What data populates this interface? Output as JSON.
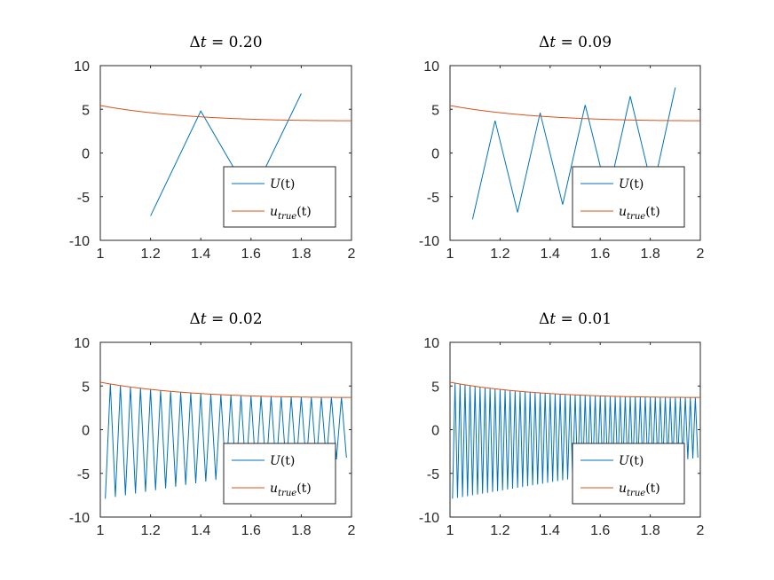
{
  "colors": {
    "U": "#0072BD",
    "utrue": "#D95319",
    "axis": "#262626"
  },
  "chart_data": [
    {
      "type": "line",
      "title": {
        "prefix": "Δ",
        "var": "t",
        "rest": " = 0.20"
      },
      "xlim": [
        1,
        2
      ],
      "ylim": [
        -10,
        10
      ],
      "xticks": [
        1,
        1.2,
        1.4,
        1.6,
        1.8,
        2
      ],
      "yticks": [
        -10,
        -5,
        0,
        5,
        10
      ],
      "xtick_labels": [
        "1",
        "1.2",
        "1.4",
        "1.6",
        "1.8",
        "2"
      ],
      "ytick_labels": [
        "-10",
        "-5",
        "0",
        "5",
        "10"
      ],
      "grid": false,
      "legend_position": "bottom-right",
      "series": [
        {
          "name": "U(t)",
          "label": {
            "main": "U",
            "sub": "",
            "arg": "(t)"
          },
          "color_key": "U",
          "x": [
            1.2,
            1.4,
            1.6,
            1.8
          ],
          "y": [
            -7.2,
            4.8,
            -5.1,
            6.8
          ]
        },
        {
          "name": "u_true(t)",
          "label": {
            "main": "u",
            "sub": "true",
            "arg": "(t)"
          },
          "color_key": "utrue",
          "function": "2*exp(t)/(t*t)"
        }
      ]
    },
    {
      "type": "line",
      "title": {
        "prefix": "Δ",
        "var": "t",
        "rest": " = 0.09"
      },
      "xlim": [
        1,
        2
      ],
      "ylim": [
        -10,
        10
      ],
      "xticks": [
        1,
        1.2,
        1.4,
        1.6,
        1.8,
        2
      ],
      "yticks": [
        -10,
        -5,
        0,
        5,
        10
      ],
      "xtick_labels": [
        "1",
        "1.2",
        "1.4",
        "1.6",
        "1.8",
        "2"
      ],
      "ytick_labels": [
        "-10",
        "-5",
        "0",
        "5",
        "10"
      ],
      "grid": false,
      "legend_position": "bottom-right",
      "series": [
        {
          "name": "U(t)",
          "label": {
            "main": "U",
            "sub": "",
            "arg": "(t)"
          },
          "color_key": "U",
          "x": [
            1.09,
            1.18,
            1.27,
            1.36,
            1.45,
            1.54,
            1.63,
            1.72,
            1.81,
            1.9
          ],
          "y": [
            -7.6,
            3.7,
            -6.8,
            4.6,
            -5.9,
            5.5,
            -5.0,
            6.5,
            -4.3,
            7.5
          ]
        },
        {
          "name": "u_true(t)",
          "label": {
            "main": "u",
            "sub": "true",
            "arg": "(t)"
          },
          "color_key": "utrue",
          "function": "2*exp(t)/(t*t)"
        }
      ]
    },
    {
      "type": "line",
      "title": {
        "prefix": "Δ",
        "var": "t",
        "rest": " = 0.02"
      },
      "xlim": [
        1,
        2
      ],
      "ylim": [
        -10,
        10
      ],
      "xticks": [
        1,
        1.2,
        1.4,
        1.6,
        1.8,
        2
      ],
      "yticks": [
        -10,
        -5,
        0,
        5,
        10
      ],
      "xtick_labels": [
        "1",
        "1.2",
        "1.4",
        "1.6",
        "1.8",
        "2"
      ],
      "ytick_labels": [
        "-10",
        "-5",
        "0",
        "5",
        "10"
      ],
      "grid": false,
      "legend_position": "bottom-right",
      "series": [
        {
          "name": "U(t)",
          "label": {
            "main": "U",
            "sub": "",
            "arg": "(t)"
          },
          "color_key": "U",
          "sawtooth": {
            "t0": 1.02,
            "dt": 0.02,
            "t_end": 1.98,
            "low_start": -7.9,
            "low_end": -3.2,
            "high": "utrue"
          }
        },
        {
          "name": "u_true(t)",
          "label": {
            "main": "u",
            "sub": "true",
            "arg": "(t)"
          },
          "color_key": "utrue",
          "function": "2*exp(t)/(t*t)"
        }
      ]
    },
    {
      "type": "line",
      "title": {
        "prefix": "Δ",
        "var": "t",
        "rest": " = 0.01"
      },
      "xlim": [
        1,
        2
      ],
      "ylim": [
        -10,
        10
      ],
      "xticks": [
        1,
        1.2,
        1.4,
        1.6,
        1.8,
        2
      ],
      "yticks": [
        -10,
        -5,
        0,
        5,
        10
      ],
      "xtick_labels": [
        "1",
        "1.2",
        "1.4",
        "1.6",
        "1.8",
        "2"
      ],
      "ytick_labels": [
        "-10",
        "-5",
        "0",
        "5",
        "10"
      ],
      "grid": false,
      "legend_position": "bottom-right",
      "series": [
        {
          "name": "U(t)",
          "label": {
            "main": "U",
            "sub": "",
            "arg": "(t)"
          },
          "color_key": "U",
          "sawtooth": {
            "t0": 1.01,
            "dt": 0.01,
            "t_end": 1.99,
            "low_start": -7.9,
            "low_end": -3.2,
            "high": "utrue"
          }
        },
        {
          "name": "u_true(t)",
          "label": {
            "main": "u",
            "sub": "true",
            "arg": "(t)"
          },
          "color_key": "utrue",
          "function": "2*exp(t)/(t*t)"
        }
      ]
    }
  ]
}
